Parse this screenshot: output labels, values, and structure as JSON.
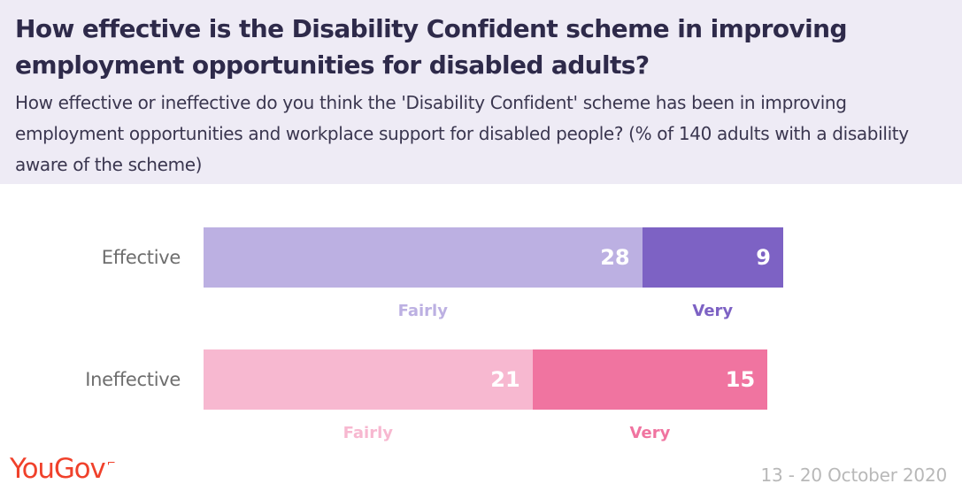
{
  "header": {
    "title": "How effective is the Disability Confident scheme in improving employment opportunities for disabled adults?",
    "subtitle": "How effective or ineffective do you think the 'Disability Confident' scheme has been in improving employment opportunities and workplace support for disabled people? (% of 140 adults with a disability aware of the scheme)"
  },
  "footer": {
    "brand": "YouGov",
    "date": "13 - 20 October 2020"
  },
  "colors": {
    "header_bg": "#eeebf5",
    "effective_fairly": "#bcb0e2",
    "effective_very": "#7d62c4",
    "ineffective_fairly": "#f7b8d0",
    "ineffective_very": "#f074a0",
    "brand": "#f0412b"
  },
  "chart_data": {
    "type": "bar",
    "orientation": "horizontal",
    "stacked": true,
    "title": "How effective is the Disability Confident scheme in improving employment opportunities for disabled adults?",
    "categories": [
      "Effective",
      "Ineffective"
    ],
    "rows": [
      {
        "label": "Effective",
        "segments": [
          {
            "name": "Fairly",
            "value": 28,
            "color": "#bcb0e2",
            "label_color": "#bcb0e2"
          },
          {
            "name": "Very",
            "value": 9,
            "color": "#7d62c4",
            "label_color": "#7d62c4"
          }
        ]
      },
      {
        "label": "Ineffective",
        "segments": [
          {
            "name": "Fairly",
            "value": 21,
            "color": "#f7b8d0",
            "label_color": "#f7b8d0"
          },
          {
            "name": "Very",
            "value": 15,
            "color": "#f074a0",
            "label_color": "#f074a0"
          }
        ]
      }
    ],
    "grid": false,
    "legend": "segment labels below each bar"
  }
}
